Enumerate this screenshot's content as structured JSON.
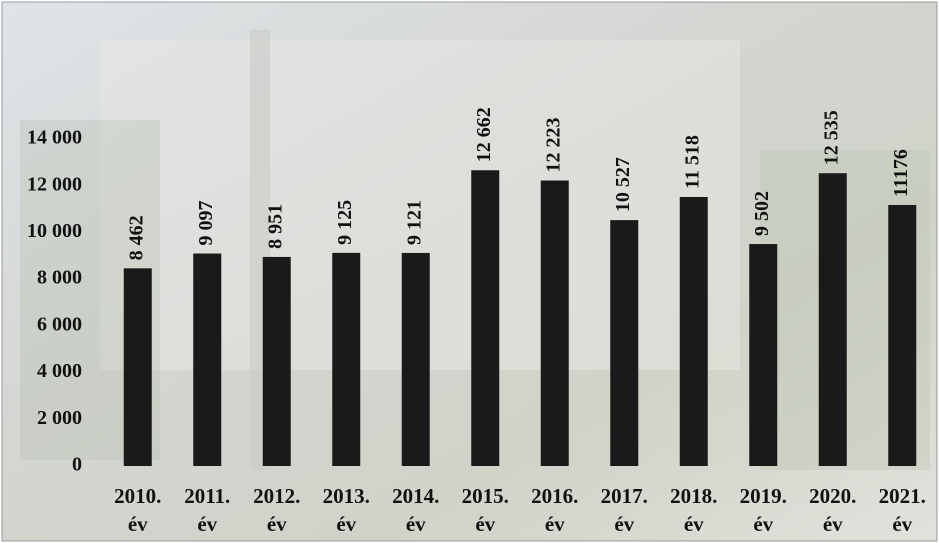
{
  "chart_data": {
    "type": "bar",
    "categories": [
      "2010. év",
      "2011. év",
      "2012. év",
      "2013. év",
      "2014. év",
      "2015. év",
      "2016. év",
      "2017. év",
      "2018. év",
      "2019. év",
      "2020. év",
      "2021. év"
    ],
    "values": [
      8462,
      9097,
      8951,
      9125,
      9121,
      12662,
      12223,
      10527,
      11518,
      9502,
      12535,
      11176
    ],
    "value_labels": [
      "8 462",
      "9 097",
      "8 951",
      "9 125",
      "9 121",
      "12 662",
      "12 223",
      "10 527",
      "11 518",
      "9 502",
      "12 535",
      "11176"
    ],
    "color": "#1a1a1a",
    "ylim": [
      0,
      14000
    ],
    "yticks": [
      0,
      {
        "value": 2000,
        "label": "2 000"
      },
      {
        "value": 4000,
        "label": "4 000"
      },
      {
        "value": 6000,
        "label": "6 000"
      },
      {
        "value": 8000,
        "label": "8 000"
      },
      {
        "value": 10000,
        "label": "10 000"
      },
      {
        "value": 12000,
        "label": "12 000"
      },
      {
        "value": 14000,
        "label": "14 000"
      }
    ],
    "grid": false
  }
}
